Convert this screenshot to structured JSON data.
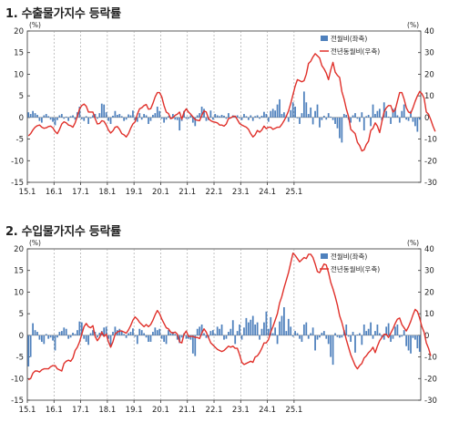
{
  "charts": [
    {
      "title": "1. 수출물가지수 등락률"
    },
    {
      "title": "2. 수입물가지수 등락률"
    }
  ],
  "colors": {
    "bar": "#4f81bd",
    "line": "#e0302a",
    "axis": "#333333",
    "grid": "#9a9a9a"
  },
  "chart_data": [
    {
      "type": "bar",
      "title": "1. 수출물가지수 등락률",
      "left_unit": "(%)",
      "right_unit": "(%)",
      "left_ylim": [
        -15,
        20
      ],
      "right_ylim": [
        -30,
        40
      ],
      "left_ticks": [
        -15,
        -10,
        -5,
        0,
        5,
        10,
        15,
        20
      ],
      "right_ticks": [
        -30,
        -20,
        -10,
        0,
        10,
        20,
        30,
        40
      ],
      "x_ticks": [
        "15.1",
        "16.1",
        "17.1",
        "18.1",
        "19.1",
        "20.1",
        "21.1",
        "22.1",
        "23.1",
        "24.1",
        "25.1"
      ],
      "x_start": "2015-01",
      "legend_position": "top-right",
      "series": [
        {
          "name": "전월비(좌축)",
          "type": "bar",
          "axis": "left",
          "values": [
            1.2,
            0.8,
            1.5,
            1.0,
            0.6,
            -0.8,
            -1.2,
            0.5,
            0.8,
            0.3,
            -0.5,
            -1.0,
            -1.8,
            -0.6,
            0.5,
            0.8,
            -0.3,
            0.2,
            -0.8,
            0.3,
            0.5,
            -0.5,
            1.2,
            2.5,
            -0.4,
            -0.8,
            0.3,
            -1.5,
            -0.2,
            0.5,
            0.8,
            -0.3,
            1.0,
            3.2,
            3.0,
            1.2,
            -0.8,
            -1.5,
            0.4,
            1.5,
            0.6,
            0.8,
            0.3,
            -0.8,
            -0.5,
            0.7,
            0.5,
            1.6,
            -0.6,
            -1.0,
            1.0,
            -0.5,
            0.8,
            0.5,
            -1.5,
            -0.8,
            0.6,
            1.0,
            2.5,
            1.5,
            -0.3,
            -1.2,
            -0.5,
            0.3,
            -0.4,
            0.8,
            -0.5,
            -0.6,
            -3.0,
            -0.8,
            1.5,
            -0.3,
            -0.3,
            0.5,
            -1.2,
            -2.0,
            0.5,
            1.0,
            2.5,
            2.0,
            -0.8,
            -0.6,
            1.6,
            -0.5,
            0.8,
            0.5,
            0.3,
            0.6,
            0.4,
            -0.3,
            1.0,
            -0.2,
            0.5,
            0.4,
            0.5,
            -0.2,
            -0.6,
            0.8,
            0.3,
            -0.6,
            0.5,
            -0.8,
            0.3,
            0.5,
            -0.3,
            0.4,
            1.3,
            0.8,
            -1.0,
            1.5,
            2.0,
            1.6,
            3.0,
            4.2,
            0.8,
            1.2,
            0.5,
            -1.0,
            1.7,
            3.5,
            2.5,
            -0.2,
            -1.5,
            1.0,
            6.0,
            3.5,
            0.8,
            2.3,
            -1.6,
            1.5,
            3.0,
            -2.3,
            -0.6,
            0.4,
            -0.5,
            1.0,
            0.2,
            -0.6,
            -1.5,
            -2.5,
            -4.8,
            -5.8,
            0.8,
            0.6,
            -0.5,
            -1.2,
            0.5,
            1.0,
            -0.3,
            -1.0,
            1.2,
            -3.0,
            0.3,
            0.6,
            -2.0,
            3.0,
            0.8,
            1.5,
            2.0,
            -0.7,
            3.5,
            1.5,
            0.2,
            -1.5,
            2.0,
            2.2,
            0.5,
            -1.2,
            1.5,
            3.0,
            -0.5,
            -0.8,
            1.5,
            -1.0,
            -2.0,
            -3.3,
            -0.5
          ]
        },
        {
          "name": "전년동월비(우축)",
          "type": "line",
          "axis": "right",
          "values": [
            -8.5,
            -7.5,
            -5.8,
            -4.5,
            -3.8,
            -3.5,
            -4.5,
            -5.0,
            -4.8,
            -4.2,
            -4.0,
            -4.8,
            -6.5,
            -7.5,
            -5.5,
            -3.0,
            -2.0,
            -2.5,
            -3.5,
            -3.8,
            -4.5,
            -2.5,
            0.5,
            4.0,
            5.5,
            6.2,
            5.2,
            2.5,
            2.5,
            2.5,
            -0.5,
            -3.0,
            -2.8,
            -1.5,
            -1.8,
            -3.5,
            -5.8,
            -7.2,
            -6.2,
            -4.5,
            -4.2,
            -5.5,
            -7.5,
            -8.0,
            -9.0,
            -7.5,
            -5.0,
            -3.0,
            -2.0,
            1.5,
            4.0,
            4.5,
            5.5,
            6.0,
            3.8,
            4.0,
            6.5,
            9.5,
            11.5,
            11.5,
            9.5,
            5.5,
            2.5,
            1.8,
            -0.5,
            -0.2,
            1.0,
            1.5,
            2.5,
            -0.8,
            2.5,
            4.0,
            2.5,
            1.5,
            0.3,
            -1.0,
            -1.3,
            -1.5,
            1.0,
            3.0,
            2.5,
            -0.5,
            -1.5,
            -2.0,
            -2.2,
            -2.5,
            -3.5,
            -3.5,
            -4.0,
            -3.0,
            -0.5,
            -0.2,
            0.5,
            0.6,
            -1.0,
            -2.8,
            -3.5,
            -4.0,
            -4.5,
            -5.5,
            -7.5,
            -9.0,
            -8.0,
            -6.0,
            -6.8,
            -5.8,
            -4.0,
            -5.2,
            -4.5,
            -4.5,
            -5.5,
            -5.0,
            -4.5,
            -4.5,
            -3.2,
            -1.5,
            0.5,
            3.0,
            6.5,
            10.5,
            14.5,
            17.5,
            17.0,
            16.5,
            17.0,
            20.0,
            25.0,
            26.0,
            28.0,
            29.5,
            28.5,
            27.5,
            24.0,
            22.5,
            20.5,
            17.5,
            22.0,
            25.5,
            21.0,
            19.5,
            18.5,
            12.0,
            8.5,
            4.0,
            0.5,
            -5.5,
            -6.5,
            -7.5,
            -11.5,
            -13.0,
            -15.5,
            -15.0,
            -12.5,
            -11.0,
            -6.0,
            -5.0,
            -2.5,
            -4.0,
            -7.0,
            -2.0,
            2.5,
            4.5,
            5.5,
            5.5,
            2.5,
            3.5,
            7.5,
            11.5,
            11.5,
            8.5,
            4.5,
            2.5,
            2.0,
            4.5,
            7.5,
            10.0,
            12.0,
            11.0,
            9.0,
            2.5,
            1.5,
            -1.0,
            -4.0,
            -6.5
          ]
        }
      ]
    },
    {
      "type": "bar",
      "title": "2. 수입물가지수 등락률",
      "left_unit": "(%)",
      "right_unit": "(%)",
      "left_ylim": [
        -15,
        20
      ],
      "right_ylim": [
        -30,
        40
      ],
      "left_ticks": [
        -15,
        -10,
        -5,
        0,
        5,
        10,
        15,
        20
      ],
      "right_ticks": [
        -30,
        -20,
        -10,
        0,
        10,
        20,
        30,
        40
      ],
      "x_ticks": [
        "15.1",
        "16.1",
        "17.1",
        "18.1",
        "19.1",
        "20.1",
        "21.1",
        "22.1",
        "23.1",
        "24.1",
        "25.1"
      ],
      "x_start": "2015-01",
      "legend_position": "top-right",
      "series": [
        {
          "name": "전월비(좌축)",
          "type": "bar",
          "axis": "left",
          "values": [
            -7.2,
            -5.0,
            2.8,
            1.2,
            0.8,
            -1.0,
            -1.5,
            -2.0,
            0.3,
            -0.8,
            -0.5,
            -1.2,
            -3.5,
            -0.5,
            0.8,
            1.0,
            1.8,
            1.5,
            -0.8,
            -0.5,
            0.6,
            0.3,
            1.2,
            3.2,
            3.0,
            -0.8,
            -1.5,
            -2.2,
            0.5,
            1.2,
            0.8,
            -0.5,
            0.6,
            1.0,
            1.8,
            2.0,
            -0.8,
            -2.5,
            0.8,
            2.0,
            1.2,
            1.5,
            1.0,
            0.3,
            -0.6,
            0.5,
            0.8,
            1.6,
            -0.3,
            -2.0,
            1.5,
            1.2,
            0.5,
            -0.5,
            -1.5,
            -1.5,
            0.8,
            1.8,
            1.2,
            1.5,
            -0.8,
            -1.5,
            -2.0,
            1.2,
            0.5,
            0.8,
            0.3,
            -1.0,
            -1.8,
            -0.5,
            0.5,
            -0.8,
            -0.8,
            -1.0,
            -4.2,
            -4.8,
            1.5,
            2.0,
            2.5,
            0.5,
            -0.6,
            -0.5,
            1.0,
            1.2,
            0.3,
            2.0,
            1.5,
            2.5,
            -1.0,
            -0.8,
            0.8,
            1.5,
            3.5,
            -2.0,
            1.0,
            2.5,
            -1.0,
            1.8,
            4.0,
            3.0,
            3.6,
            4.5,
            2.5,
            3.0,
            -1.0,
            1.5,
            3.0,
            5.5,
            1.5,
            4.2,
            0.5,
            1.8,
            -2.0,
            3.2,
            4.5,
            6.5,
            1.0,
            3.8,
            2.0,
            -0.3,
            1.0,
            0.5,
            -0.8,
            -1.5,
            2.5,
            3.0,
            -0.8,
            0.5,
            1.8,
            -3.5,
            -1.0,
            -0.5,
            0.6,
            1.0,
            -0.8,
            -2.0,
            -5.0,
            -6.8,
            0.5,
            -0.4,
            -0.6,
            -0.5,
            1.2,
            2.5,
            -0.3,
            -1.5,
            0.8,
            -4.0,
            0.2,
            0.5,
            -2.2,
            2.5,
            1.0,
            1.5,
            3.0,
            -0.8,
            1.0,
            2.5,
            0.5,
            -0.5,
            -1.0,
            2.0,
            2.8,
            -1.5,
            -0.8,
            2.0,
            2.5,
            -0.5,
            -0.3,
            1.2,
            -2.5,
            -3.5,
            -4.2,
            -0.6,
            -1.0,
            -3.0,
            -3.8
          ]
        },
        {
          "name": "전년동월비(우축)",
          "type": "line",
          "axis": "right",
          "values": [
            -20.5,
            -20.0,
            -17.5,
            -16.5,
            -16.5,
            -17.0,
            -16.0,
            -15.5,
            -15.5,
            -15.5,
            -14.5,
            -14.0,
            -14.0,
            -15.5,
            -16.0,
            -16.5,
            -13.0,
            -12.0,
            -11.5,
            -12.0,
            -10.5,
            -7.0,
            -5.5,
            -3.0,
            0.5,
            4.0,
            5.5,
            4.0,
            3.5,
            4.5,
            -0.5,
            -2.5,
            -1.0,
            1.5,
            -0.5,
            0.5,
            -3.0,
            -5.5,
            -3.0,
            0.5,
            1.5,
            2.0,
            2.0,
            1.5,
            1.0,
            2.5,
            4.5,
            7.0,
            8.5,
            7.5,
            6.0,
            5.0,
            4.0,
            5.0,
            4.0,
            5.0,
            7.0,
            9.5,
            11.5,
            10.0,
            7.5,
            5.5,
            3.5,
            3.0,
            1.5,
            1.0,
            1.5,
            0.5,
            -3.0,
            -3.5,
            0.5,
            2.0,
            -0.5,
            -0.5,
            -0.5,
            -1.0,
            -1.0,
            -1.5,
            1.0,
            3.0,
            1.5,
            -1.0,
            -3.5,
            -4.5,
            -5.5,
            -6.5,
            -7.0,
            -7.5,
            -7.0,
            -6.0,
            -5.0,
            -5.5,
            -5.0,
            -6.0,
            -6.0,
            -9.0,
            -12.5,
            -13.5,
            -13.0,
            -12.5,
            -12.0,
            -12.5,
            -10.0,
            -9.5,
            -8.0,
            -6.0,
            -3.5,
            -3.5,
            -2.0,
            1.5,
            4.0,
            7.0,
            10.0,
            15.0,
            18.0,
            22.0,
            25.5,
            29.0,
            33.5,
            38.0,
            37.0,
            35.5,
            34.0,
            35.0,
            36.0,
            35.5,
            37.5,
            37.5,
            36.0,
            33.0,
            29.5,
            29.0,
            31.0,
            33.0,
            32.5,
            29.0,
            24.5,
            21.5,
            18.0,
            14.0,
            9.0,
            6.0,
            2.0,
            -2.0,
            -5.5,
            -9.0,
            -11.5,
            -14.0,
            -15.5,
            -14.0,
            -13.0,
            -10.5,
            -9.5,
            -8.0,
            -7.0,
            -5.5,
            -8.0,
            -5.0,
            -2.5,
            -1.0,
            0.5,
            0.5,
            -1.0,
            1.0,
            3.0,
            5.5,
            7.5,
            8.0,
            5.0,
            3.5,
            2.0,
            4.0,
            6.5,
            9.5,
            12.0,
            11.0,
            8.0,
            4.0,
            1.5,
            -3.5,
            -6.0,
            -9.5
          ]
        }
      ]
    }
  ]
}
